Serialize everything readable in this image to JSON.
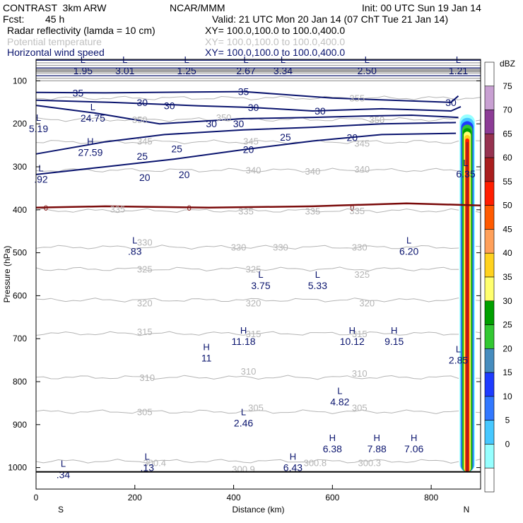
{
  "header": {
    "model": "CONTRAST  3km ARW",
    "org": "NCAR/MMM",
    "init": "Init: 00 UTC Sun 19 Jan 14",
    "fcst_label": "Fcst:",
    "fcst_value": "45 h",
    "valid": "Valid: 21 UTC Mon 20 Jan 14 (07 ChT Tue 21 Jan 14)",
    "fields": [
      {
        "name": "Radar reflectivity (lamda = 10 cm)",
        "xy": "XY= 100.0,100.0 to 100.0,400.0",
        "color": "#000000"
      },
      {
        "name": "Potential temperature",
        "xy": "XY= 100.0,100.0 to 100.0,400.0",
        "color": "#c0c0c0"
      },
      {
        "name": "Horizontal wind speed",
        "xy": "XY= 100.0,100.0 to 100.0,400.0",
        "color": "#0a146e"
      }
    ]
  },
  "chart_data": {
    "type": "contour",
    "xlabel": "Distance (km)",
    "ylabel": "Pressure (hPa)",
    "xlim": [
      0,
      900
    ],
    "ylim": [
      1050,
      50
    ],
    "x_ticks": [
      0,
      200,
      400,
      600,
      800
    ],
    "y_ticks": [
      100,
      200,
      300,
      400,
      500,
      600,
      700,
      800,
      900,
      1000
    ],
    "x_endpoint_labels": {
      "left": "S",
      "right": "N"
    },
    "colorbar": {
      "unit": "dBZ",
      "levels": [
        "75",
        "70",
        "65",
        "60",
        "55",
        "50",
        "45",
        "40",
        "35",
        "30",
        "25",
        "20",
        "15",
        "10",
        "5",
        "0"
      ],
      "colors": [
        "#ffffff",
        "#c8a0d2",
        "#8c3c96",
        "#963250",
        "#aa1e1e",
        "#ff1e00",
        "#ff5a00",
        "#ffa05a",
        "#ffd21e",
        "#ffff6e",
        "#00a000",
        "#32c832",
        "#468cbe",
        "#1e3cff",
        "#3278ff",
        "#46c8ff",
        "#96ffff",
        "#ffffff"
      ]
    },
    "theta_contours": [
      {
        "value": 355,
        "p": 140
      },
      {
        "value": 350,
        "p": 190
      },
      {
        "value": 345,
        "p": 242
      },
      {
        "value": 340,
        "p": 308
      },
      {
        "value": 335,
        "p": 402
      },
      {
        "value": 330,
        "p": 487
      },
      {
        "value": 325,
        "p": 538
      },
      {
        "value": 320,
        "p": 610
      },
      {
        "value": 315,
        "p": 688
      },
      {
        "value": 310,
        "p": 790
      },
      {
        "value": 305,
        "p": 870
      },
      {
        "value": 300,
        "p": 985
      }
    ],
    "theta_labels": [
      {
        "text": "350",
        "x": 210,
        "p": 190
      },
      {
        "text": "350",
        "x": 380,
        "p": 185
      },
      {
        "text": "350",
        "x": 690,
        "p": 190
      },
      {
        "text": "355",
        "x": 650,
        "p": 140
      },
      {
        "text": "345",
        "x": 220,
        "p": 240
      },
      {
        "text": "345",
        "x": 435,
        "p": 240
      },
      {
        "text": "345",
        "x": 660,
        "p": 245
      },
      {
        "text": "340",
        "x": 440,
        "p": 307
      },
      {
        "text": "340",
        "x": 560,
        "p": 310
      },
      {
        "text": "340",
        "x": 660,
        "p": 305
      },
      {
        "text": "335",
        "x": 165,
        "p": 398
      },
      {
        "text": "335",
        "x": 425,
        "p": 403
      },
      {
        "text": "335",
        "x": 560,
        "p": 403
      },
      {
        "text": "335",
        "x": 650,
        "p": 402
      },
      {
        "text": "330",
        "x": 220,
        "p": 475
      },
      {
        "text": "330",
        "x": 410,
        "p": 487
      },
      {
        "text": "330",
        "x": 495,
        "p": 487
      },
      {
        "text": "330",
        "x": 655,
        "p": 487
      },
      {
        "text": "325",
        "x": 220,
        "p": 538
      },
      {
        "text": "325",
        "x": 440,
        "p": 538
      },
      {
        "text": "325",
        "x": 660,
        "p": 550
      },
      {
        "text": "320",
        "x": 220,
        "p": 617
      },
      {
        "text": "320",
        "x": 440,
        "p": 617
      },
      {
        "text": "320",
        "x": 670,
        "p": 617
      },
      {
        "text": "315",
        "x": 220,
        "p": 683
      },
      {
        "text": "315",
        "x": 440,
        "p": 688
      },
      {
        "text": "315",
        "x": 655,
        "p": 688
      },
      {
        "text": "310",
        "x": 225,
        "p": 790
      },
      {
        "text": "310",
        "x": 430,
        "p": 775
      },
      {
        "text": "310",
        "x": 655,
        "p": 780
      },
      {
        "text": "305",
        "x": 220,
        "p": 870
      },
      {
        "text": "305",
        "x": 445,
        "p": 860
      },
      {
        "text": "305",
        "x": 655,
        "p": 860
      },
      {
        "text": "300.4",
        "x": 240,
        "p": 988
      },
      {
        "text": "300.9",
        "x": 420,
        "p": 1003
      },
      {
        "text": "300.8",
        "x": 565,
        "p": 988
      },
      {
        "text": "300.3",
        "x": 675,
        "p": 988
      }
    ],
    "wind_contours": [
      {
        "value": 35,
        "pts": [
          [
            0,
            127
          ],
          [
            140,
            128
          ],
          [
            420,
            125
          ],
          [
            600,
            140
          ],
          [
            840,
            150
          ],
          [
            855,
            135
          ]
        ]
      },
      {
        "value": 30,
        "pts": [
          [
            0,
            145
          ],
          [
            150,
            150
          ],
          [
            330,
            158
          ],
          [
            440,
            162
          ],
          [
            560,
            170
          ],
          [
            700,
            165
          ],
          [
            840,
            170
          ],
          [
            860,
            160
          ]
        ]
      },
      {
        "value": 30,
        "pts": [
          [
            0,
            157
          ],
          [
            120,
            175
          ],
          [
            250,
            200
          ],
          [
            420,
            188
          ],
          [
            560,
            185
          ],
          [
            660,
            182
          ],
          [
            760,
            180
          ],
          [
            855,
            185
          ]
        ]
      },
      {
        "value": 25,
        "pts": [
          [
            0,
            270
          ],
          [
            140,
            242
          ],
          [
            260,
            225
          ],
          [
            420,
            214
          ],
          [
            560,
            208
          ],
          [
            700,
            200
          ],
          [
            850,
            197
          ]
        ]
      },
      {
        "value": 20,
        "pts": [
          [
            0,
            318
          ],
          [
            140,
            300
          ],
          [
            280,
            282
          ],
          [
            420,
            260
          ],
          [
            560,
            240
          ],
          [
            700,
            225
          ],
          [
            850,
            222
          ]
        ]
      },
      {
        "value": 0,
        "pts": [
          [
            0,
            395
          ],
          [
            140,
            392
          ],
          [
            350,
            395
          ],
          [
            560,
            392
          ],
          [
            750,
            385
          ],
          [
            900,
            390
          ]
        ]
      }
    ],
    "wind_labels": [
      {
        "text": "35",
        "x": 85,
        "p": 128
      },
      {
        "text": "35",
        "x": 420,
        "p": 125
      },
      {
        "text": "30",
        "x": 215,
        "p": 150
      },
      {
        "text": "30",
        "x": 270,
        "p": 158
      },
      {
        "text": "30",
        "x": 440,
        "p": 162
      },
      {
        "text": "30",
        "x": 575,
        "p": 170
      },
      {
        "text": "30",
        "x": 840,
        "p": 150
      },
      {
        "text": "30",
        "x": 355,
        "p": 200
      },
      {
        "text": "30",
        "x": 410,
        "p": 200
      },
      {
        "text": "25",
        "x": 215,
        "p": 275
      },
      {
        "text": "25",
        "x": 285,
        "p": 258
      },
      {
        "text": "25",
        "x": 505,
        "p": 231
      },
      {
        "text": "20",
        "x": 220,
        "p": 325
      },
      {
        "text": "20",
        "x": 300,
        "p": 318
      },
      {
        "text": "20",
        "x": 430,
        "p": 260
      },
      {
        "text": "20",
        "x": 640,
        "p": 232
      }
    ],
    "freezing_label": "0",
    "extrema": [
      {
        "kind": "L",
        "value": "1.95",
        "x": 95,
        "p": 65
      },
      {
        "kind": "L",
        "value": "3.01",
        "x": 180,
        "p": 65
      },
      {
        "kind": "L",
        "value": "1.25",
        "x": 305,
        "p": 65
      },
      {
        "kind": "L",
        "value": "2.67",
        "x": 425,
        "p": 65
      },
      {
        "kind": "L",
        "value": "3.34",
        "x": 500,
        "p": 65
      },
      {
        "kind": "L",
        "value": "2.50",
        "x": 670,
        "p": 65
      },
      {
        "kind": "L",
        "value": "1.21",
        "x": 855,
        "p": 65
      },
      {
        "kind": "L",
        "value": "24.75",
        "x": 115,
        "p": 175
      },
      {
        "kind": "L",
        "value": "5.19",
        "x": 5,
        "p": 200
      },
      {
        "kind": "H",
        "value": "27.59",
        "x": 110,
        "p": 255
      },
      {
        "kind": "L",
        "value": "6.35",
        "x": 870,
        "p": 305
      },
      {
        "kind": "L",
        "value": ".92",
        "x": 10,
        "p": 317
      },
      {
        "kind": "L",
        "value": ".83",
        "x": 200,
        "p": 485
      },
      {
        "kind": "L",
        "value": "6.20",
        "x": 755,
        "p": 485
      },
      {
        "kind": "L",
        "value": "3.75",
        "x": 455,
        "p": 565
      },
      {
        "kind": "L",
        "value": "5.33",
        "x": 570,
        "p": 565
      },
      {
        "kind": "H",
        "value": "11.18",
        "x": 420,
        "p": 695
      },
      {
        "kind": "H",
        "value": "10.12",
        "x": 640,
        "p": 695
      },
      {
        "kind": "H",
        "value": "9.15",
        "x": 725,
        "p": 695
      },
      {
        "kind": "H",
        "value": "11",
        "x": 345,
        "p": 733
      },
      {
        "kind": "L",
        "value": "2.85",
        "x": 855,
        "p": 738
      },
      {
        "kind": "L",
        "value": "4.82",
        "x": 615,
        "p": 835
      },
      {
        "kind": "L",
        "value": "2.46",
        "x": 420,
        "p": 885
      },
      {
        "kind": "H",
        "value": "6.38",
        "x": 600,
        "p": 945
      },
      {
        "kind": "H",
        "value": "7.88",
        "x": 690,
        "p": 945
      },
      {
        "kind": "H",
        "value": "7.06",
        "x": 765,
        "p": 945
      },
      {
        "kind": "H",
        "value": "6.43",
        "x": 520,
        "p": 988
      },
      {
        "kind": "L",
        "value": ".13",
        "x": 225,
        "p": 988
      },
      {
        "kind": "L",
        "value": ".34",
        "x": 55,
        "p": 1005
      }
    ]
  }
}
